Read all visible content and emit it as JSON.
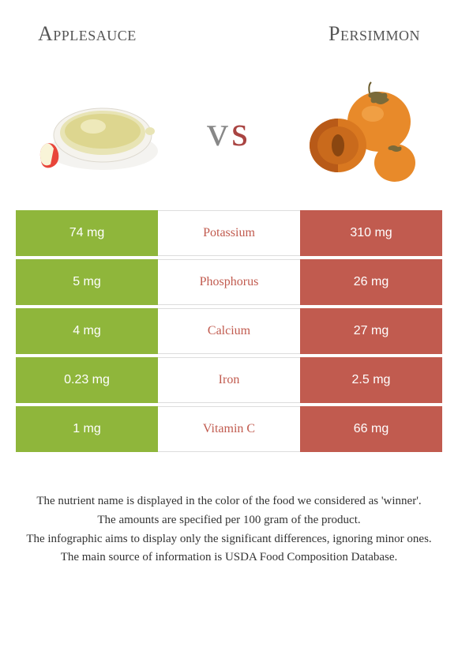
{
  "left_food": {
    "name": "Applesauce",
    "color": "#8fb63b"
  },
  "right_food": {
    "name": "Persimmon",
    "color": "#c15b4f"
  },
  "vs_label": "vs",
  "rows": [
    {
      "label": "Potassium",
      "left": "74 mg",
      "right": "310 mg",
      "winner": "right"
    },
    {
      "label": "Phosphorus",
      "left": "5 mg",
      "right": "26 mg",
      "winner": "right"
    },
    {
      "label": "Calcium",
      "left": "4 mg",
      "right": "27 mg",
      "winner": "right"
    },
    {
      "label": "Iron",
      "left": "0.23 mg",
      "right": "2.5 mg",
      "winner": "right"
    },
    {
      "label": "Vitamin C",
      "left": "1 mg",
      "right": "66 mg",
      "winner": "right"
    }
  ],
  "footer": [
    "The nutrient name is displayed in the color of the food we considered as 'winner'.",
    "The amounts are specified per 100 gram of the product.",
    "The infographic aims to display only the significant differences, ignoring minor ones.",
    "The main source of information is USDA Food Composition Database."
  ]
}
